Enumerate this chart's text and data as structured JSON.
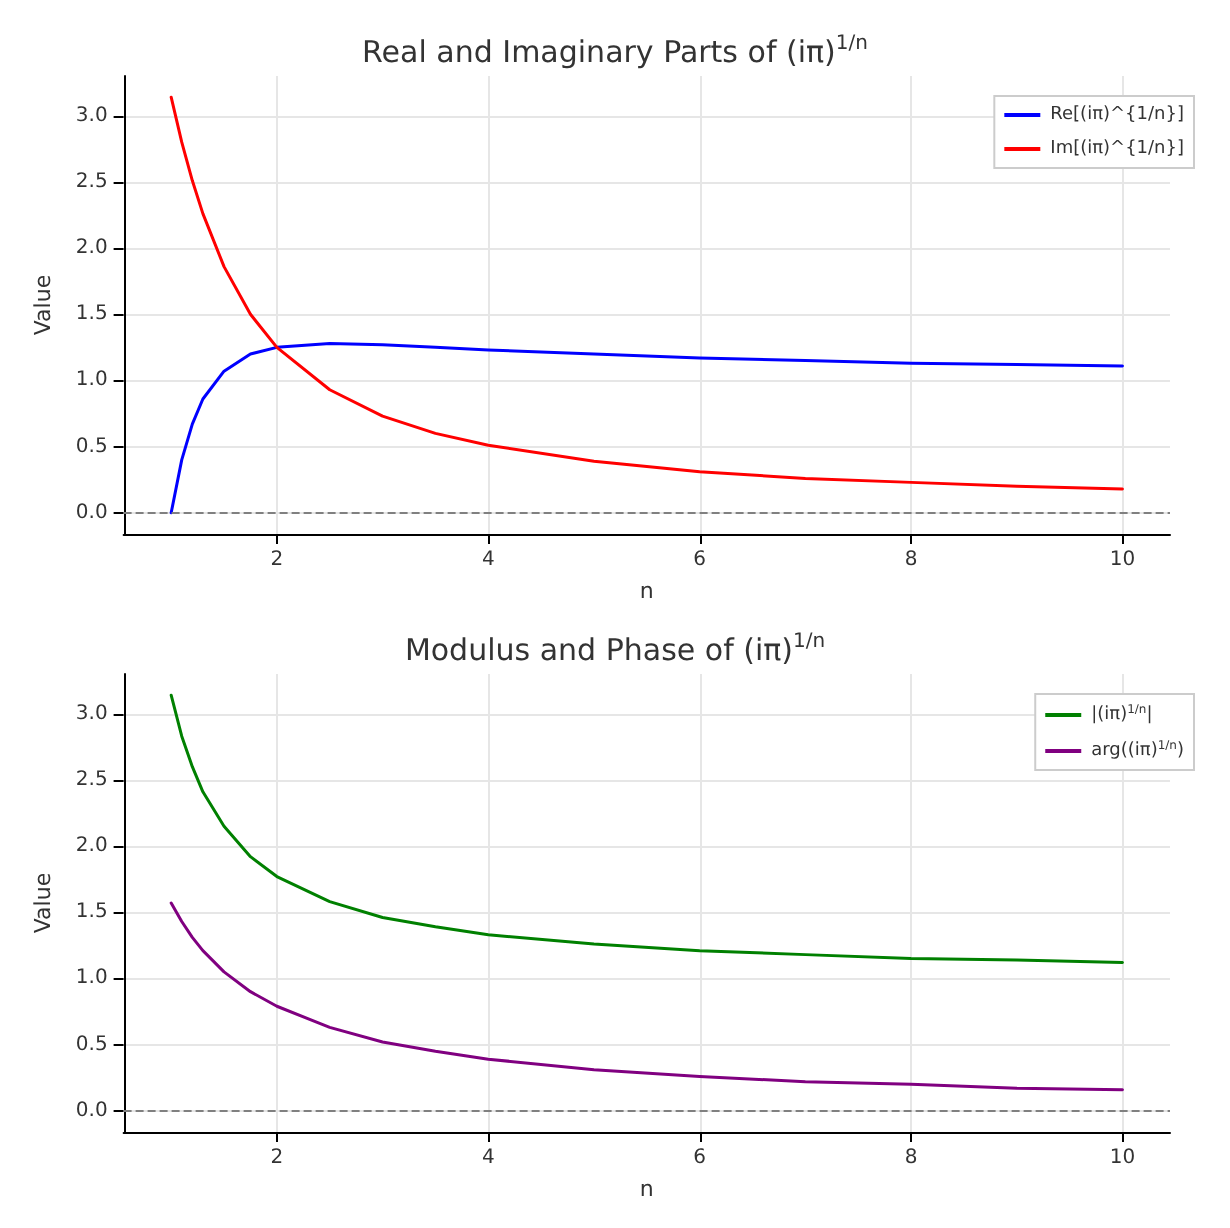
{
  "chart_data": [
    {
      "type": "line",
      "title": "Real and Imaginary Parts of (iπ)$^{1/n}$",
      "xlabel": "n",
      "ylabel": "Value",
      "x": [
        1,
        1.1,
        1.2,
        1.3,
        1.5,
        1.75,
        2,
        2.5,
        3,
        3.5,
        4,
        5,
        6,
        7,
        8,
        9,
        10
      ],
      "series": [
        {
          "name": "Re[(iπ)^{1/n}]",
          "color": "#0000ff",
          "values": [
            0,
            0.4,
            0.67,
            0.86,
            1.07,
            1.2,
            1.25,
            1.28,
            1.27,
            1.25,
            1.23,
            1.2,
            1.17,
            1.15,
            1.13,
            1.12,
            1.11
          ]
        },
        {
          "name": "Im[(iπ)^{1/n}]",
          "color": "#ff0000",
          "values": [
            3.14,
            2.8,
            2.51,
            2.26,
            1.86,
            1.5,
            1.25,
            0.93,
            0.73,
            0.6,
            0.51,
            0.39,
            0.31,
            0.26,
            0.23,
            0.2,
            0.18
          ]
        }
      ],
      "xlim": [
        0.55,
        10.45
      ],
      "xticks": [
        2,
        4,
        6,
        8,
        10
      ],
      "ylim": [
        -0.16,
        3.3
      ],
      "yticks": [
        {
          "value": 0,
          "label": "0.0"
        },
        {
          "value": 0.5,
          "label": "0.5"
        },
        {
          "value": 1,
          "label": "1.0"
        },
        {
          "value": 1.5,
          "label": "1.5"
        },
        {
          "value": 2,
          "label": "2.0"
        },
        {
          "value": 2.5,
          "label": "2.5"
        },
        {
          "value": 3,
          "label": "3.0"
        }
      ],
      "ref_lines": [
        {
          "axis": "y",
          "value": 0,
          "color": "#808080",
          "line_style": "dashed"
        }
      ],
      "grid": true,
      "legend": "top right",
      "marker": "none",
      "line_style": "solid"
    },
    {
      "type": "line",
      "title": "Modulus and Phase of (iπ)$^{1/n}$",
      "xlabel": "n",
      "ylabel": "Value",
      "x": [
        1,
        1.1,
        1.2,
        1.3,
        1.5,
        1.75,
        2,
        2.5,
        3,
        3.5,
        4,
        5,
        6,
        7,
        8,
        9,
        10
      ],
      "series": [
        {
          "name": "|(iπ)$^{1/n}$|",
          "color": "#008000",
          "values": [
            3.14,
            2.83,
            2.6,
            2.41,
            2.15,
            1.92,
            1.77,
            1.58,
            1.46,
            1.39,
            1.33,
            1.26,
            1.21,
            1.18,
            1.15,
            1.14,
            1.12
          ]
        },
        {
          "name": "arg((iπ)$^{1/n}$)",
          "color": "#800080",
          "values": [
            1.57,
            1.43,
            1.31,
            1.21,
            1.05,
            0.9,
            0.79,
            0.63,
            0.52,
            0.45,
            0.39,
            0.31,
            0.26,
            0.22,
            0.2,
            0.17,
            0.16
          ]
        }
      ],
      "xlim": [
        0.55,
        10.45
      ],
      "xticks": [
        2,
        4,
        6,
        8,
        10
      ],
      "ylim": [
        -0.16,
        3.3
      ],
      "yticks": [
        {
          "value": 0,
          "label": "0.0"
        },
        {
          "value": 0.5,
          "label": "0.5"
        },
        {
          "value": 1,
          "label": "1.0"
        },
        {
          "value": 1.5,
          "label": "1.5"
        },
        {
          "value": 2,
          "label": "2.0"
        },
        {
          "value": 2.5,
          "label": "2.5"
        },
        {
          "value": 3,
          "label": "3.0"
        }
      ],
      "ref_lines": [
        {
          "axis": "y",
          "value": 0,
          "color": "#808080",
          "line_style": "dashed"
        }
      ],
      "grid": true,
      "legend": "top right",
      "marker": "none",
      "line_style": "solid"
    }
  ]
}
